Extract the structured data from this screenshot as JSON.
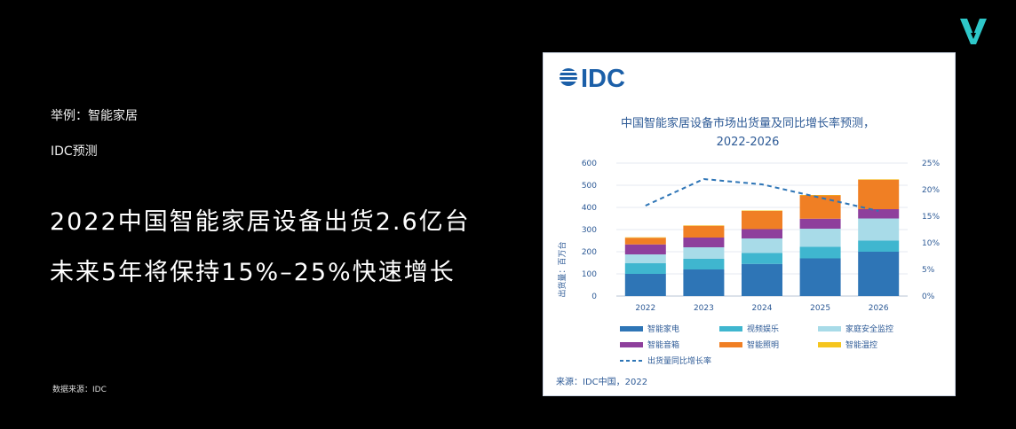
{
  "slide": {
    "line1": "举例：智能家居",
    "line2": "IDC预测",
    "headline1": "2022中国智能家居设备出货2.6亿台",
    "headline2": "未来5年将保持15%–25%快速增长",
    "source_note": "数据来源：IDC"
  },
  "colors": {
    "logo_teal": "#2ec7c9",
    "idc_blue": "#1b5fa8",
    "title_blue": "#2d5a96"
  },
  "chart_data": {
    "type": "bar",
    "stacked": true,
    "brand": "IDC",
    "title_line1": "中国智能家居设备市场出货量及同比增长率预测，",
    "title_line2": "2022-2026",
    "ylabel": "出货量：百万台",
    "ylim": [
      0,
      600
    ],
    "yticks": [
      0,
      100,
      200,
      300,
      400,
      500,
      600
    ],
    "y2lim": [
      0,
      25
    ],
    "y2ticks": [
      "0%",
      "5%",
      "10%",
      "15%",
      "20%",
      "25%"
    ],
    "categories": [
      "2022",
      "2023",
      "2024",
      "2025",
      "2026"
    ],
    "series": [
      {
        "name": "智能家电",
        "color": "#2e75b6",
        "values": [
          100,
          120,
          145,
          170,
          200
        ]
      },
      {
        "name": "视频娱乐",
        "color": "#3fb6cf",
        "values": [
          48,
          48,
          50,
          52,
          50
        ]
      },
      {
        "name": "家庭安全监控",
        "color": "#a8dbe8",
        "values": [
          40,
          52,
          65,
          82,
          100
        ]
      },
      {
        "name": "智能音箱",
        "color": "#8e3f9c",
        "values": [
          45,
          44,
          42,
          45,
          42
        ]
      },
      {
        "name": "智能照明",
        "color": "#f07f24",
        "values": [
          30,
          53,
          82,
          105,
          133
        ]
      },
      {
        "name": "智能温控",
        "color": "#f5c51e",
        "values": [
          2,
          2,
          2,
          2,
          2
        ]
      }
    ],
    "line_series": {
      "name": "出货量同比增长率",
      "color": "#2e75b6",
      "values": [
        17,
        22,
        21,
        18.5,
        16
      ]
    },
    "legend_position": "bottom",
    "source": "来源：IDC中国，2022"
  }
}
